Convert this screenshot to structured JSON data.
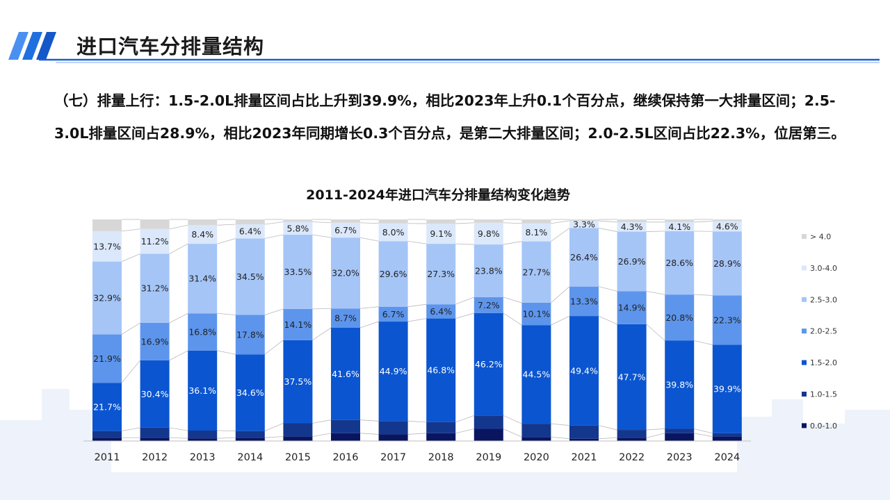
{
  "header": {
    "title": "进口汽车分排量结构"
  },
  "intro": {
    "text": "（七）排量上行：1.5-2.0L排量区间占比上升到39.9%，相比2023年上升0.1个百分点，继续保持第一大排量区间；2.5-3.0L排量区间占28.9%，相比2023年同期增长0.3个百分点，是第二大排量区间；2.0-2.5L区间占比22.3%，位居第三。"
  },
  "chart_data": {
    "type": "bar",
    "stacked": true,
    "percent_stacked": true,
    "title": "2011-2024年进口汽车分排量结构变化趋势",
    "xlabel": "",
    "ylabel": "",
    "categories": [
      "2011",
      "2012",
      "2013",
      "2014",
      "2015",
      "2016",
      "2017",
      "2018",
      "2019",
      "2020",
      "2021",
      "2022",
      "2023",
      "2024"
    ],
    "legend_position": "right",
    "series": [
      {
        "name": "0.0-1.0",
        "color": "#0a1560",
        "values": [
          1.5,
          1.5,
          1.2,
          1.5,
          2.0,
          3.5,
          3.0,
          3.5,
          5.5,
          1.8,
          1.0,
          1.5,
          3.5,
          2.0
        ],
        "labels": [
          "",
          "",
          "",
          "",
          "",
          "",
          "",
          "",
          "",
          "",
          "",
          "",
          "",
          ""
        ]
      },
      {
        "name": "1.0-1.5",
        "color": "#14378e",
        "values": [
          3.0,
          4.5,
          3.5,
          3.0,
          6.0,
          6.0,
          6.0,
          5.0,
          6.0,
          6.0,
          6.0,
          3.5,
          2.0,
          1.5
        ],
        "labels": [
          "",
          "",
          "",
          "",
          "",
          "",
          "",
          "",
          "",
          "",
          "",
          "",
          "",
          ""
        ]
      },
      {
        "name": "1.5-2.0",
        "color": "#0b55d0",
        "values": [
          21.7,
          30.4,
          36.1,
          34.6,
          37.5,
          41.6,
          44.9,
          46.8,
          46.2,
          44.5,
          49.4,
          47.7,
          39.8,
          39.9
        ],
        "labels": [
          "21.7%",
          "30.4%",
          "36.1%",
          "34.6%",
          "37.5%",
          "41.6%",
          "44.9%",
          "46.8%",
          "46.2%",
          "44.5%",
          "49.4%",
          "47.7%",
          "39.8%",
          "39.9%"
        ]
      },
      {
        "name": "2.0-2.5",
        "color": "#5d95ec",
        "values": [
          21.9,
          16.9,
          16.8,
          17.8,
          14.1,
          8.7,
          6.7,
          6.4,
          7.2,
          10.1,
          13.3,
          14.9,
          20.8,
          22.3
        ],
        "labels": [
          "21.9%",
          "16.9%",
          "16.8%",
          "17.8%",
          "14.1%",
          "8.7%",
          "6.7%",
          "6.4%",
          "7.2%",
          "10.1%",
          "13.3%",
          "14.9%",
          "20.8%",
          "22.3%"
        ]
      },
      {
        "name": "2.5-3.0",
        "color": "#a5c5f7",
        "values": [
          32.9,
          31.2,
          31.4,
          34.5,
          33.5,
          32.0,
          29.6,
          27.3,
          23.8,
          27.7,
          26.4,
          26.9,
          28.6,
          28.9
        ],
        "labels": [
          "32.9%",
          "31.2%",
          "31.4%",
          "34.5%",
          "33.5%",
          "32.0%",
          "29.6%",
          "27.3%",
          "23.8%",
          "27.7%",
          "26.4%",
          "26.9%",
          "28.6%",
          "28.9%"
        ]
      },
      {
        "name": "3.0-4.0",
        "color": "#dbe8fb",
        "values": [
          13.7,
          11.2,
          8.4,
          6.4,
          5.8,
          6.7,
          8.0,
          9.1,
          9.8,
          8.1,
          3.3,
          4.3,
          4.1,
          4.6
        ],
        "labels": [
          "13.7%",
          "11.2%",
          "8.4%",
          "6.4%",
          "5.8%",
          "6.7%",
          "8.0%",
          "9.1%",
          "9.8%",
          "8.1%",
          "3.3%",
          "4.3%",
          "4.1%",
          "4.6%"
        ]
      },
      {
        "name": "> 4.0",
        "color": "#d7d7d7",
        "values": [
          5.3,
          4.3,
          2.6,
          2.2,
          1.1,
          1.5,
          1.8,
          1.9,
          1.5,
          1.8,
          0.6,
          1.2,
          1.2,
          0.8
        ],
        "labels": [
          "",
          "",
          "",
          "",
          "",
          "",
          "",
          "",
          "",
          "",
          "",
          "",
          "",
          ""
        ]
      }
    ]
  }
}
